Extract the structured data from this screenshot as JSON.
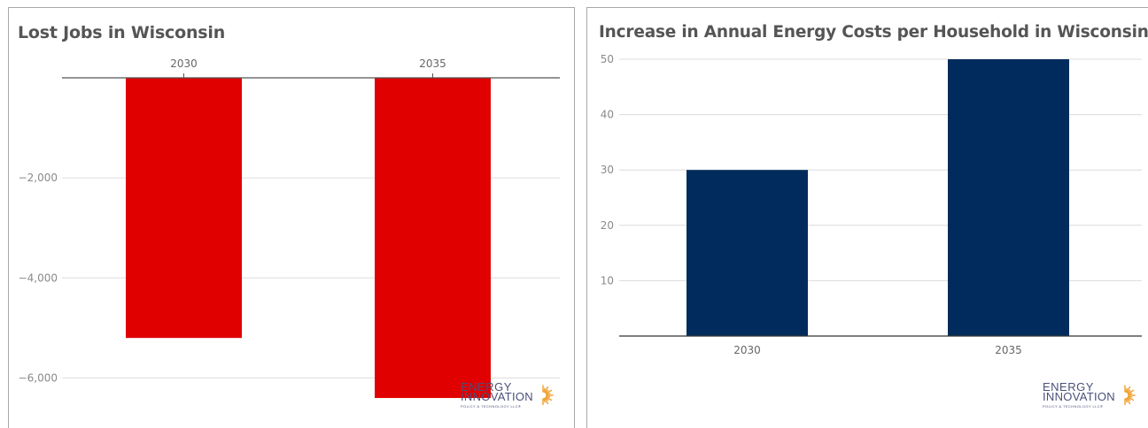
{
  "chart_data": [
    {
      "type": "bar",
      "title": "Lost Jobs in Wisconsin",
      "categories": [
        "2030",
        "2035"
      ],
      "values": [
        -5200,
        -6400
      ],
      "xlabel": "",
      "ylabel": "",
      "ylim": [
        -7000,
        0
      ],
      "yticks": [
        -2000,
        -4000,
        -6000
      ],
      "ytick_labels": [
        "−2,000",
        "−4,000",
        "−6,000"
      ],
      "x_axis_position": "top",
      "grid": true,
      "bar_color": "#e00000"
    },
    {
      "type": "bar",
      "title": "Increase in Annual Energy Costs per Household in Wisconsin",
      "categories": [
        "2030",
        "2035"
      ],
      "values": [
        30,
        50
      ],
      "xlabel": "",
      "ylabel": "",
      "ylim": [
        0,
        50
      ],
      "yticks": [
        10,
        20,
        30,
        40,
        50
      ],
      "ytick_labels": [
        "10",
        "20",
        "30",
        "40",
        "50"
      ],
      "x_axis_position": "bottom",
      "grid": true,
      "bar_color": "#002b5c"
    }
  ],
  "logo": {
    "line1": "ENERGY",
    "line2": "INNOVATION",
    "tagline": "POLICY & TECHNOLOGY LLC®",
    "icon": "sunburst-icon",
    "color": "#4a4f7a",
    "accent": "#f0a030"
  }
}
